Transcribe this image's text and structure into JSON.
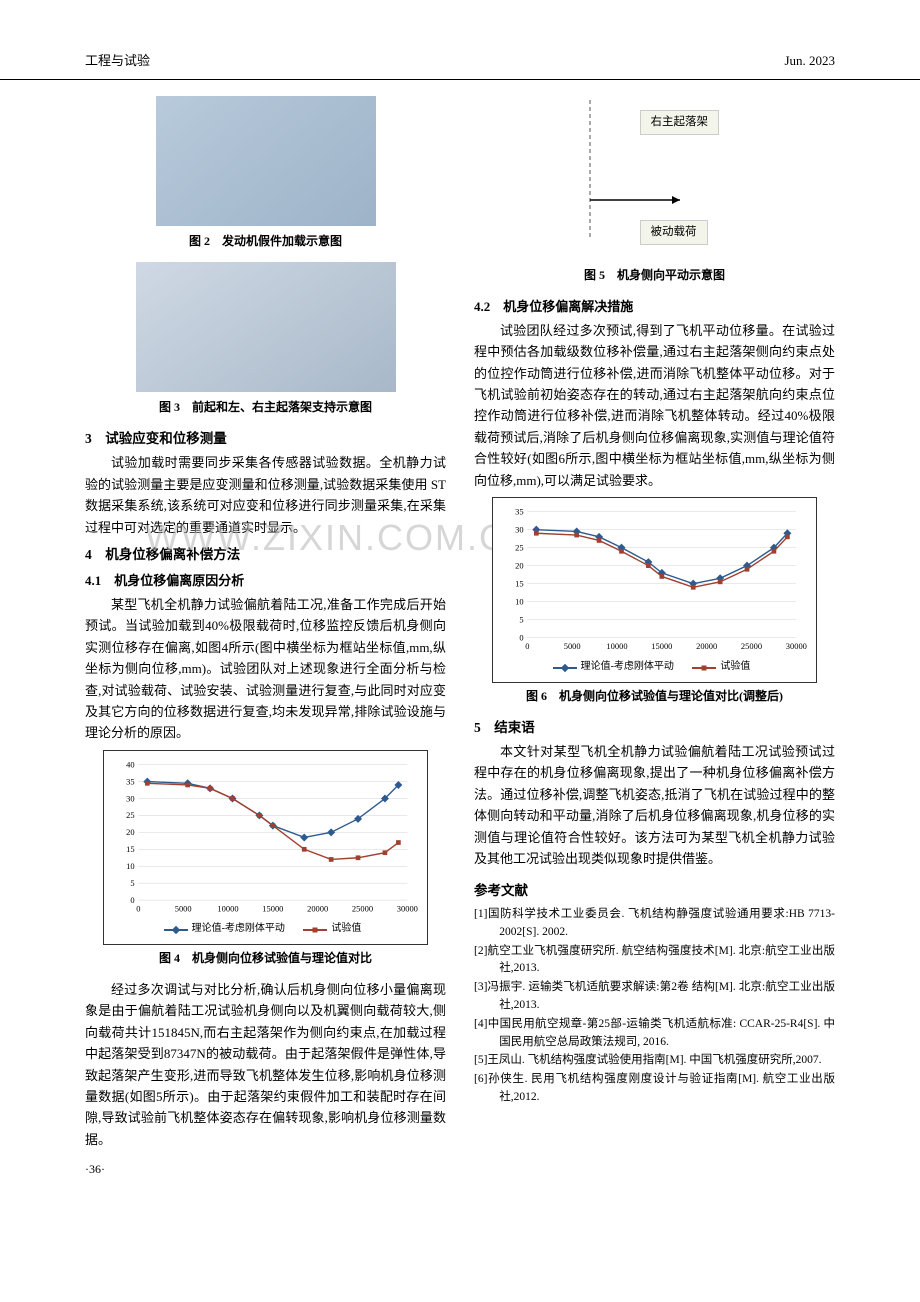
{
  "header": {
    "journal": "工程与试验",
    "date": "Jun. 2023"
  },
  "figures": {
    "fig2_caption": "图 2　发动机假件加载示意图",
    "fig3_caption": "图 3　前起和左、右主起落架支持示意图",
    "fig4_caption": "图 4　机身侧向位移试验值与理论值对比",
    "fig5_caption": "图 5　机身侧向平动示意图",
    "fig6_caption": "图 6　机身侧向位移试验值与理论值对比(调整后)"
  },
  "sections": {
    "s3_title": "3　试验应变和位移测量",
    "s3_p1": "试验加载时需要同步采集各传感器试验数据。全机静力试验的试验测量主要是应变测量和位移测量,试验数据采集使用 ST 数据采集系统,该系统可对应变和位移进行同步测量采集,在采集过程中可对选定的重要通道实时显示。",
    "s4_title": "4　机身位移偏离补偿方法",
    "s41_title": "4.1　机身位移偏离原因分析",
    "s41_p1": "某型飞机全机静力试验偏航着陆工况,准备工作完成后开始预试。当试验加载到40%极限载荷时,位移监控反馈后机身侧向实测位移存在偏离,如图4所示(图中横坐标为框站坐标值,mm,纵坐标为侧向位移,mm)。试验团队对上述现象进行全面分析与检查,对试验载荷、试验安装、试验测量进行复查,与此同时对应变及其它方向的位移数据进行复查,均未发现异常,排除试验设施与理论分析的原因。",
    "s41_p2": "经过多次调试与对比分析,确认后机身侧向位移小量偏离现象是由于偏航着陆工况试验机身侧向以及机翼侧向载荷较大,侧向载荷共计151845N,而右主起落架作为侧向约束点,在加载过程中起落架受到87347N的被动载荷。由于起落架假件是弹性体,导致起落架产生变形,进而导致飞机整体发生位移,影响机身位移测量数据(如图5所示)。由于起落架约束假件加工和装配时存在间隙,导致试验前飞机整体姿态存在偏转现象,影响机身位移测量数据。",
    "s42_title": "4.2　机身位移偏离解决措施",
    "s42_p1": "试验团队经过多次预试,得到了飞机平动位移量。在试验过程中预估各加载级数位移补偿量,通过右主起落架侧向约束点处的位控作动筒进行位移补偿,进而消除飞机整体平动位移。对于飞机试验前初始姿态存在的转动,通过右主起落架航向约束点位控作动筒进行位移补偿,进而消除飞机整体转动。经过40%极限载荷预试后,消除了后机身侧向位移偏离现象,实测值与理论值符合性较好(如图6所示,图中横坐标为框站坐标值,mm,纵坐标为侧向位移,mm),可以满足试验要求。",
    "s5_title": "5　结束语",
    "s5_p1": "本文针对某型飞机全机静力试验偏航着陆工况试验预试过程中存在的机身位移偏离现象,提出了一种机身位移偏离补偿方法。通过位移补偿,调整飞机姿态,抵消了飞机在试验过程中的整体侧向转动和平动量,消除了后机身位移偏离现象,机身位移的实测值与理论值符合性较好。该方法可为某型飞机全机静力试验及其他工况试验出现类似现象时提供借鉴。"
  },
  "fig5_diagram": {
    "label1": "右主起落架",
    "label2": "被动载荷"
  },
  "chart4": {
    "type": "line",
    "xlim": [
      0,
      30000
    ],
    "ylim": [
      0,
      40
    ],
    "xticks": [
      0,
      5000,
      10000,
      15000,
      20000,
      25000,
      30000
    ],
    "yticks": [
      0,
      5,
      10,
      15,
      20,
      25,
      30,
      35,
      40
    ],
    "grid_color": "#d0d0d0",
    "series": [
      {
        "name": "理论值-考虑刚体平动",
        "color": "#2e5b8f",
        "marker": "diamond",
        "x": [
          1000,
          5500,
          8000,
          10500,
          13500,
          15000,
          18500,
          21500,
          24500,
          27500,
          29000
        ],
        "y": [
          35,
          34.5,
          33,
          30,
          25,
          22,
          18.5,
          20,
          24,
          30,
          34
        ]
      },
      {
        "name": "试验值",
        "color": "#a04030",
        "marker": "square",
        "x": [
          1000,
          5500,
          8000,
          10500,
          13500,
          15000,
          18500,
          21500,
          24500,
          27500,
          29000
        ],
        "y": [
          34.5,
          34,
          33,
          30,
          25,
          22,
          15,
          12,
          12.5,
          14,
          17
        ]
      }
    ],
    "legend": [
      "理论值-考虑刚体平动",
      "试验值"
    ]
  },
  "chart6": {
    "type": "line",
    "xlim": [
      0,
      30000
    ],
    "ylim": [
      0,
      35
    ],
    "xticks": [
      0,
      5000,
      10000,
      15000,
      20000,
      25000,
      30000
    ],
    "yticks": [
      0,
      5,
      10,
      15,
      20,
      25,
      30,
      35
    ],
    "grid_color": "#d0d0d0",
    "series": [
      {
        "name": "理论值-考虑刚体平动",
        "color": "#2e5b8f",
        "marker": "diamond",
        "x": [
          1000,
          5500,
          8000,
          10500,
          13500,
          15000,
          18500,
          21500,
          24500,
          27500,
          29000
        ],
        "y": [
          30,
          29.5,
          28,
          25,
          21,
          18,
          15,
          16.5,
          20,
          25,
          29
        ]
      },
      {
        "name": "试验值",
        "color": "#a04030",
        "marker": "square",
        "x": [
          1000,
          5500,
          8000,
          10500,
          13500,
          15000,
          18500,
          21500,
          24500,
          27500,
          29000
        ],
        "y": [
          29,
          28.5,
          27,
          24,
          20,
          17,
          14,
          15.5,
          19,
          24,
          28
        ]
      }
    ],
    "legend": [
      "理论值-考虑刚体平动",
      "试验值"
    ]
  },
  "references": {
    "title": "参考文献",
    "items": [
      "[1]国防科学技术工业委员会. 飞机结构静强度试验通用要求:HB 7713-2002[S]. 2002.",
      "[2]航空工业飞机强度研究所. 航空结构强度技术[M]. 北京:航空工业出版社,2013.",
      "[3]冯振宇. 运输类飞机适航要求解读:第2卷 结构[M]. 北京:航空工业出版社,2013.",
      "[4]中国民用航空规章-第25部-运输类飞机适航标准: CCAR-25-R4[S]. 中国民用航空总局政策法规司, 2016.",
      "[5]王凤山. 飞机结构强度试验使用指南[M]. 中国飞机强度研究所,2007.",
      "[6]孙侠生. 民用飞机结构强度刚度设计与验证指南[M]. 航空工业出版社,2012."
    ]
  },
  "page_num": "·36·",
  "watermark": "WWW.ZIXIN.COM.CN"
}
